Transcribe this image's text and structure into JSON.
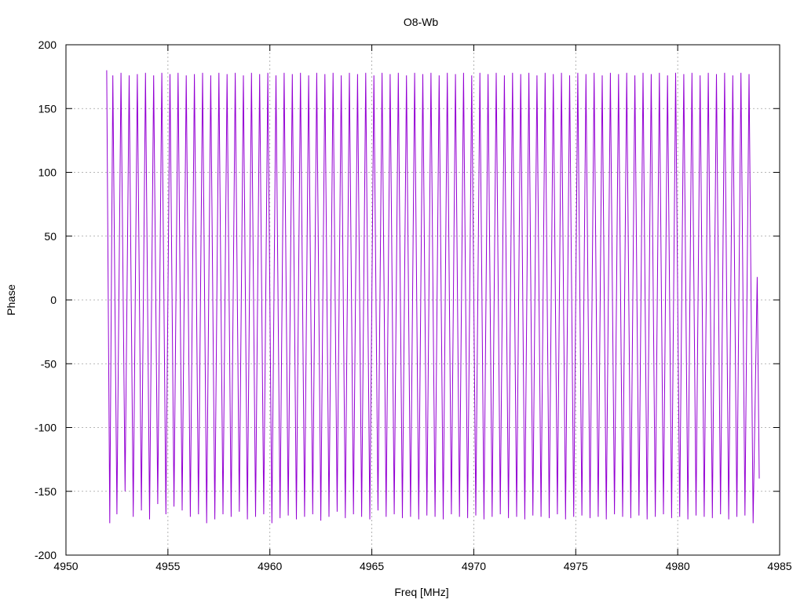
{
  "chart_data": {
    "type": "line",
    "title": "O8-Wb",
    "xlabel": "Freq [MHz]",
    "ylabel": "Phase",
    "xlim": [
      4950,
      4985
    ],
    "ylim": [
      -200,
      200
    ],
    "xticks": [
      4950,
      4955,
      4960,
      4965,
      4970,
      4975,
      4980,
      4985
    ],
    "yticks": [
      -200,
      -150,
      -100,
      -50,
      0,
      50,
      100,
      150,
      200
    ],
    "grid": true,
    "series_color": "#9400D3",
    "series": [
      {
        "x": [
          4952.0,
          4952.15,
          4952.3,
          4952.5,
          4952.7,
          4952.9,
          4953.1,
          4953.3,
          4953.5,
          4953.7,
          4953.9,
          4954.1,
          4954.3,
          4954.5,
          4954.7,
          4954.9,
          4955.1,
          4955.3,
          4955.5,
          4955.7,
          4955.9,
          4956.1,
          4956.3,
          4956.5,
          4956.7,
          4956.9,
          4957.1,
          4957.3,
          4957.5,
          4957.7,
          4957.9,
          4958.1,
          4958.3,
          4958.5,
          4958.7,
          4958.9,
          4959.1,
          4959.3,
          4959.5,
          4959.7,
          4959.9,
          4960.1,
          4960.3,
          4960.5,
          4960.7,
          4960.9,
          4961.1,
          4961.3,
          4961.5,
          4961.7,
          4961.9,
          4962.1,
          4962.3,
          4962.5,
          4962.7,
          4962.9,
          4963.1,
          4963.3,
          4963.5,
          4963.7,
          4963.9,
          4964.1,
          4964.3,
          4964.5,
          4964.7,
          4964.9,
          4965.1,
          4965.3,
          4965.5,
          4965.7,
          4965.9,
          4966.1,
          4966.3,
          4966.5,
          4966.7,
          4966.9,
          4967.1,
          4967.3,
          4967.5,
          4967.7,
          4967.9,
          4968.1,
          4968.3,
          4968.5,
          4968.7,
          4968.9,
          4969.1,
          4969.3,
          4969.5,
          4969.7,
          4969.9,
          4970.1,
          4970.3,
          4970.5,
          4970.7,
          4970.9,
          4971.1,
          4971.3,
          4971.5,
          4971.7,
          4971.9,
          4972.1,
          4972.3,
          4972.5,
          4972.7,
          4972.9,
          4973.1,
          4973.3,
          4973.5,
          4973.7,
          4973.9,
          4974.1,
          4974.3,
          4974.5,
          4974.7,
          4974.9,
          4975.1,
          4975.3,
          4975.5,
          4975.7,
          4975.9,
          4976.1,
          4976.3,
          4976.5,
          4976.7,
          4976.9,
          4977.1,
          4977.3,
          4977.5,
          4977.7,
          4977.9,
          4978.1,
          4978.3,
          4978.5,
          4978.7,
          4978.9,
          4979.1,
          4979.3,
          4979.5,
          4979.7,
          4979.9,
          4980.1,
          4980.3,
          4980.5,
          4980.7,
          4980.9,
          4981.1,
          4981.3,
          4981.5,
          4981.7,
          4981.9,
          4982.1,
          4982.3,
          4982.5,
          4982.7,
          4982.9,
          4983.1,
          4983.3,
          4983.5,
          4983.7,
          4983.9,
          4984.0
        ],
        "y": [
          180,
          -175,
          176,
          -168,
          178,
          -150,
          176,
          -170,
          177,
          -165,
          178,
          -172,
          176,
          -160,
          178,
          -168,
          177,
          -162,
          178,
          -165,
          176,
          -170,
          177,
          -168,
          178,
          -175,
          176,
          -172,
          178,
          -168,
          177,
          -170,
          178,
          -166,
          176,
          -172,
          178,
          -170,
          177,
          -168,
          178,
          -175,
          176,
          -171,
          178,
          -169,
          177,
          -172,
          178,
          -170,
          176,
          -168,
          178,
          -173,
          177,
          -170,
          178,
          -166,
          176,
          -171,
          178,
          -168,
          177,
          -170,
          178,
          -172,
          176,
          -165,
          178,
          -170,
          177,
          -168,
          178,
          -171,
          176,
          -170,
          178,
          -172,
          177,
          -169,
          178,
          -170,
          176,
          -172,
          178,
          -168,
          177,
          -170,
          178,
          -171,
          176,
          -169,
          178,
          -172,
          177,
          -170,
          178,
          -168,
          176,
          -171,
          178,
          -170,
          177,
          -172,
          178,
          -169,
          176,
          -170,
          178,
          -171,
          177,
          -168,
          178,
          -172,
          176,
          -170,
          178,
          -169,
          177,
          -171,
          178,
          -170,
          176,
          -172,
          178,
          -168,
          177,
          -170,
          178,
          -171,
          176,
          -169,
          178,
          -172,
          177,
          -170,
          178,
          -168,
          176,
          -171,
          178,
          -170,
          177,
          -172,
          178,
          -169,
          176,
          -170,
          178,
          -171,
          177,
          -168,
          178,
          -172,
          176,
          -170,
          178,
          -169,
          177,
          -175,
          18,
          -140
        ]
      }
    ]
  }
}
